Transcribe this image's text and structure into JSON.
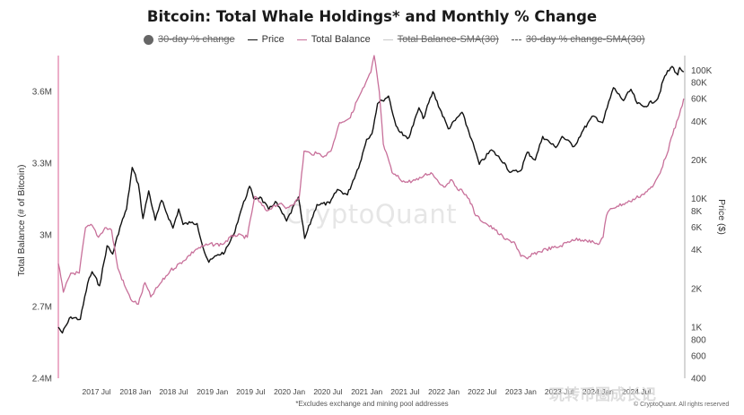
{
  "title": "Bitcoin: Total Whale Holdings* and Monthly % Change",
  "legend": [
    {
      "label": "30-day % change",
      "marker": "dot",
      "state": "hidden"
    },
    {
      "label": "Price",
      "marker": "line",
      "color": "#111111",
      "state": "shown"
    },
    {
      "label": "Total Balance",
      "marker": "line",
      "color": "#c8709a",
      "state": "shown"
    },
    {
      "label": "Total Balance-SMA(30)",
      "marker": "line",
      "color": "#c9c9c9",
      "state": "hidden"
    },
    {
      "label": "30-day % change-SMA(30)",
      "marker": "dashed-line",
      "color": "#555555",
      "state": "hidden"
    }
  ],
  "footnote": "*Excludes exchange and mining pool addresses",
  "copyright": "© CryptoQuant. All rights reserved",
  "watermark": "CryptoQuant",
  "overlay_watermark": "玩转币圈成长记",
  "chart_data": {
    "type": "line",
    "title": "Bitcoin: Total Whale Holdings* and Monthly % Change",
    "x_ticks": [
      "2017 Jul",
      "2018 Jan",
      "2018 Jul",
      "2019 Jan",
      "2019 Jul",
      "2020 Jan",
      "2020 Jul",
      "2021 Jan",
      "2021 Jul",
      "2022 Jan",
      "2022 Jul",
      "2023 Jan",
      "2023 Jul",
      "2024 Jan",
      "2024 Jul"
    ],
    "y_left": {
      "label": "Total Balance (# of Bitcoin)",
      "min": 2400000,
      "max": 3750000,
      "ticks": [
        2400000,
        2700000,
        3000000,
        3300000,
        3600000
      ],
      "tick_labels": [
        "2.4M",
        "2.7M",
        "3M",
        "3.3M",
        "3.6M"
      ]
    },
    "y_right": {
      "label": "Price ($)",
      "scale": "log",
      "min": 400,
      "max": 130000,
      "ticks": [
        400,
        600,
        800,
        1000,
        2000,
        4000,
        6000,
        8000,
        10000,
        20000,
        40000,
        60000,
        80000,
        100000
      ],
      "tick_labels": [
        "400",
        "600",
        "800",
        "1K",
        "2K",
        "4K",
        "6K",
        "8K",
        "10K",
        "20K",
        "40K",
        "60K",
        "80K",
        "100K"
      ]
    },
    "legend_position": "top",
    "grid": false,
    "series": [
      {
        "name": "Price",
        "axis": "right",
        "color": "#111111",
        "points": [
          [
            "2017-01-01",
            1000
          ],
          [
            "2017-01-20",
            900
          ],
          [
            "2017-03-01",
            1200
          ],
          [
            "2017-04-15",
            1150
          ],
          [
            "2017-05-20",
            2200
          ],
          [
            "2017-06-10",
            2700
          ],
          [
            "2017-07-15",
            2100
          ],
          [
            "2017-08-20",
            4300
          ],
          [
            "2017-09-15",
            3700
          ],
          [
            "2017-10-20",
            6000
          ],
          [
            "2017-11-20",
            8300
          ],
          [
            "2017-12-17",
            17500
          ],
          [
            "2018-01-15",
            13000
          ],
          [
            "2018-02-06",
            7000
          ],
          [
            "2018-03-05",
            11500
          ],
          [
            "2018-04-05",
            6800
          ],
          [
            "2018-05-05",
            9700
          ],
          [
            "2018-06-28",
            5900
          ],
          [
            "2018-07-25",
            8300
          ],
          [
            "2018-08-15",
            6300
          ],
          [
            "2018-09-20",
            6500
          ],
          [
            "2018-10-20",
            6400
          ],
          [
            "2018-11-25",
            3800
          ],
          [
            "2018-12-15",
            3200
          ],
          [
            "2019-01-20",
            3600
          ],
          [
            "2019-03-01",
            3850
          ],
          [
            "2019-04-10",
            5200
          ],
          [
            "2019-05-15",
            8000
          ],
          [
            "2019-06-26",
            12500
          ],
          [
            "2019-07-15",
            10000
          ],
          [
            "2019-08-15",
            10300
          ],
          [
            "2019-09-25",
            8200
          ],
          [
            "2019-10-26",
            9500
          ],
          [
            "2019-12-18",
            6700
          ],
          [
            "2020-02-12",
            10300
          ],
          [
            "2020-03-13",
            4900
          ],
          [
            "2020-05-10",
            9000
          ],
          [
            "2020-07-10",
            9200
          ],
          [
            "2020-08-15",
            11800
          ],
          [
            "2020-10-01",
            10700
          ],
          [
            "2020-11-30",
            19000
          ],
          [
            "2020-12-31",
            29000
          ],
          [
            "2021-01-25",
            32000
          ],
          [
            "2021-02-21",
            55000
          ],
          [
            "2021-03-15",
            58000
          ],
          [
            "2021-04-14",
            63000
          ],
          [
            "2021-05-19",
            37000
          ],
          [
            "2021-06-22",
            31000
          ],
          [
            "2021-07-20",
            30000
          ],
          [
            "2021-09-05",
            51000
          ],
          [
            "2021-09-25",
            42000
          ],
          [
            "2021-11-10",
            68000
          ],
          [
            "2022-01-22",
            35000
          ],
          [
            "2022-03-28",
            47000
          ],
          [
            "2022-05-12",
            29000
          ],
          [
            "2022-06-18",
            18500
          ],
          [
            "2022-08-14",
            24000
          ],
          [
            "2022-10-15",
            19000
          ],
          [
            "2022-11-10",
            16000
          ],
          [
            "2022-12-31",
            16500
          ],
          [
            "2023-01-31",
            23000
          ],
          [
            "2023-03-10",
            20000
          ],
          [
            "2023-04-14",
            30500
          ],
          [
            "2023-06-15",
            25000
          ],
          [
            "2023-07-15",
            30500
          ],
          [
            "2023-09-10",
            25500
          ],
          [
            "2023-10-24",
            34500
          ],
          [
            "2023-12-10",
            44000
          ],
          [
            "2024-01-23",
            39000
          ],
          [
            "2024-03-14",
            73000
          ],
          [
            "2024-05-01",
            58000
          ],
          [
            "2024-06-05",
            71000
          ],
          [
            "2024-07-05",
            55000
          ],
          [
            "2024-08-05",
            52000
          ],
          [
            "2024-10-10",
            60000
          ],
          [
            "2024-11-12",
            90000
          ],
          [
            "2024-12-17",
            107000
          ],
          [
            "2025-01-13",
            92000
          ],
          [
            "2025-01-22",
            105000
          ],
          [
            "2025-02-10",
            97000
          ]
        ]
      },
      {
        "name": "Total Balance",
        "axis": "left",
        "color": "#c8709a",
        "points": [
          [
            "2017-01-01",
            2880000
          ],
          [
            "2017-01-25",
            2760000
          ],
          [
            "2017-03-01",
            2840000
          ],
          [
            "2017-04-10",
            2840000
          ],
          [
            "2017-05-10",
            3030000
          ],
          [
            "2017-06-10",
            3040000
          ],
          [
            "2017-07-10",
            2990000
          ],
          [
            "2017-08-10",
            3030000
          ],
          [
            "2017-09-10",
            3020000
          ],
          [
            "2017-10-10",
            2860000
          ],
          [
            "2017-11-10",
            2790000
          ],
          [
            "2017-12-10",
            2730000
          ],
          [
            "2018-01-15",
            2710000
          ],
          [
            "2018-02-15",
            2800000
          ],
          [
            "2018-03-15",
            2740000
          ],
          [
            "2018-04-15",
            2780000
          ],
          [
            "2018-06-15",
            2850000
          ],
          [
            "2018-08-15",
            2890000
          ],
          [
            "2018-10-15",
            2940000
          ],
          [
            "2018-12-15",
            2960000
          ],
          [
            "2019-02-15",
            2960000
          ],
          [
            "2019-04-15",
            3000000
          ],
          [
            "2019-06-15",
            2990000
          ],
          [
            "2019-07-20",
            3160000
          ],
          [
            "2019-09-15",
            3100000
          ],
          [
            "2019-10-15",
            3120000
          ],
          [
            "2019-11-15",
            3130000
          ],
          [
            "2019-12-15",
            3110000
          ],
          [
            "2020-02-15",
            3150000
          ],
          [
            "2020-03-10",
            3350000
          ],
          [
            "2020-04-10",
            3340000
          ],
          [
            "2020-05-10",
            3340000
          ],
          [
            "2020-06-15",
            3330000
          ],
          [
            "2020-07-15",
            3350000
          ],
          [
            "2020-08-25",
            3470000
          ],
          [
            "2020-10-15",
            3490000
          ],
          [
            "2020-11-15",
            3560000
          ],
          [
            "2020-12-20",
            3620000
          ],
          [
            "2021-01-20",
            3680000
          ],
          [
            "2021-02-05",
            3750000
          ],
          [
            "2021-03-01",
            3600000
          ],
          [
            "2021-03-20",
            3380000
          ],
          [
            "2021-05-01",
            3260000
          ],
          [
            "2021-07-01",
            3220000
          ],
          [
            "2021-09-01",
            3230000
          ],
          [
            "2021-10-01",
            3250000
          ],
          [
            "2021-11-01",
            3260000
          ],
          [
            "2021-12-01",
            3230000
          ],
          [
            "2022-01-01",
            3200000
          ],
          [
            "2022-02-01",
            3230000
          ],
          [
            "2022-03-01",
            3200000
          ],
          [
            "2022-04-01",
            3180000
          ],
          [
            "2022-05-01",
            3150000
          ],
          [
            "2022-06-01",
            3080000
          ],
          [
            "2022-07-15",
            3050000
          ],
          [
            "2022-09-01",
            3020000
          ],
          [
            "2022-10-20",
            2980000
          ],
          [
            "2022-12-01",
            2970000
          ],
          [
            "2023-01-01",
            2910000
          ],
          [
            "2023-02-01",
            2900000
          ],
          [
            "2023-03-01",
            2920000
          ],
          [
            "2023-05-01",
            2940000
          ],
          [
            "2023-07-01",
            2950000
          ],
          [
            "2023-09-01",
            2980000
          ],
          [
            "2023-11-01",
            2980000
          ],
          [
            "2024-01-01",
            2960000
          ],
          [
            "2024-01-25",
            2990000
          ],
          [
            "2024-02-10",
            3080000
          ],
          [
            "2024-03-01",
            3110000
          ],
          [
            "2024-04-01",
            3120000
          ],
          [
            "2024-06-01",
            3140000
          ],
          [
            "2024-08-01",
            3170000
          ],
          [
            "2024-09-15",
            3200000
          ],
          [
            "2024-10-15",
            3250000
          ],
          [
            "2024-11-15",
            3320000
          ],
          [
            "2024-12-20",
            3420000
          ],
          [
            "2025-01-20",
            3500000
          ],
          [
            "2025-02-10",
            3570000
          ]
        ]
      }
    ]
  }
}
